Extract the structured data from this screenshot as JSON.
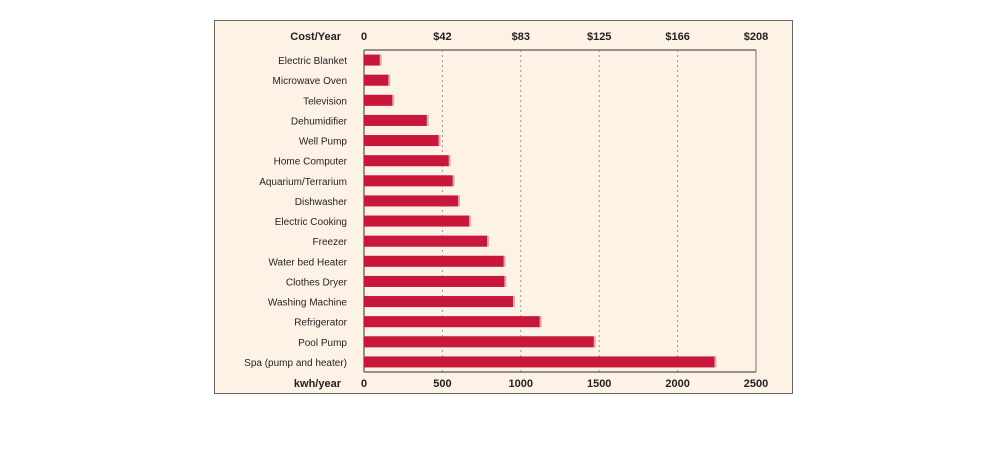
{
  "chart_data": {
    "type": "bar",
    "orientation": "horizontal",
    "title": "",
    "xlabel": "kwh/year",
    "top_axis_label": "Cost/Year",
    "ylabel": "",
    "categories": [
      "Electric Blanket",
      "Microwave Oven",
      "Television",
      "Dehumidifier",
      "Well Pump",
      "Home Computer",
      "Aquarium/Terrarium",
      "Dishwasher",
      "Electric Cooking",
      "Freezer",
      "Water bed Heater",
      "Clothes Dryer",
      "Washing Machine",
      "Refrigerator",
      "Pool Pump",
      "Spa (pump and heater)"
    ],
    "values": [
      100,
      155,
      180,
      400,
      475,
      540,
      565,
      600,
      670,
      785,
      890,
      895,
      950,
      1120,
      1465,
      2235
    ],
    "xlim": [
      0,
      2500
    ],
    "x_ticks": [
      0,
      500,
      1000,
      1500,
      2000,
      2500
    ],
    "x_tick_labels": [
      "0",
      "500",
      "1000",
      "1500",
      "2000",
      "2500"
    ],
    "top_tick_labels": [
      "0",
      "$42",
      "$83",
      "$125",
      "$166",
      "$208"
    ],
    "grid": true,
    "legend": "none",
    "bar_color": "#c8173a",
    "background_color": "#fdf2e6"
  }
}
